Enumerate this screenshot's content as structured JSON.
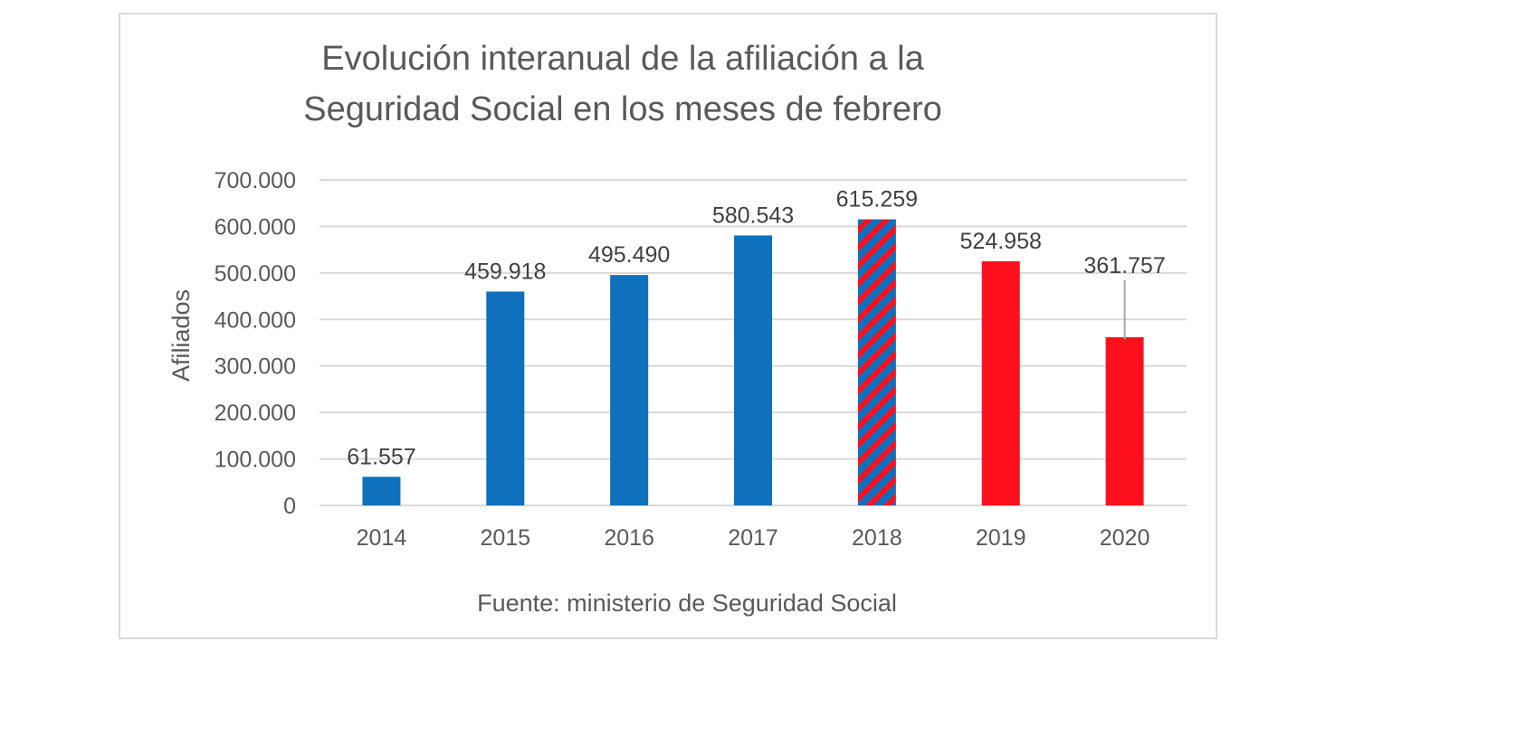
{
  "chart_data": {
    "type": "bar",
    "title": [
      "Evolución interanual de la afiliación a la",
      "Seguridad Social en los meses de febrero"
    ],
    "ylabel": "Afiliados",
    "xlabel": "",
    "source": "Fuente: ministerio de Seguridad Social",
    "ylim": [
      0,
      700000
    ],
    "yticks": [
      0,
      100000,
      200000,
      300000,
      400000,
      500000,
      600000,
      700000
    ],
    "ytick_labels": [
      "0",
      "100.000",
      "200.000",
      "300.000",
      "400.000",
      "500.000",
      "600.000",
      "700.000"
    ],
    "grid": true,
    "categories": [
      "2014",
      "2015",
      "2016",
      "2017",
      "2018",
      "2019",
      "2020"
    ],
    "values": [
      61557,
      459918,
      495490,
      580543,
      615259,
      524958,
      361757
    ],
    "value_labels": [
      "61.557",
      "459.918",
      "495.490",
      "580.543",
      "615.259",
      "524.958",
      "361.757"
    ],
    "bar_styles": [
      "blue",
      "blue",
      "blue",
      "blue",
      "striped",
      "red",
      "red"
    ],
    "colors": {
      "blue": "#0f70bd",
      "red": "#fe0f1e",
      "grid": "#d9d9d9",
      "text": "#595959"
    }
  }
}
